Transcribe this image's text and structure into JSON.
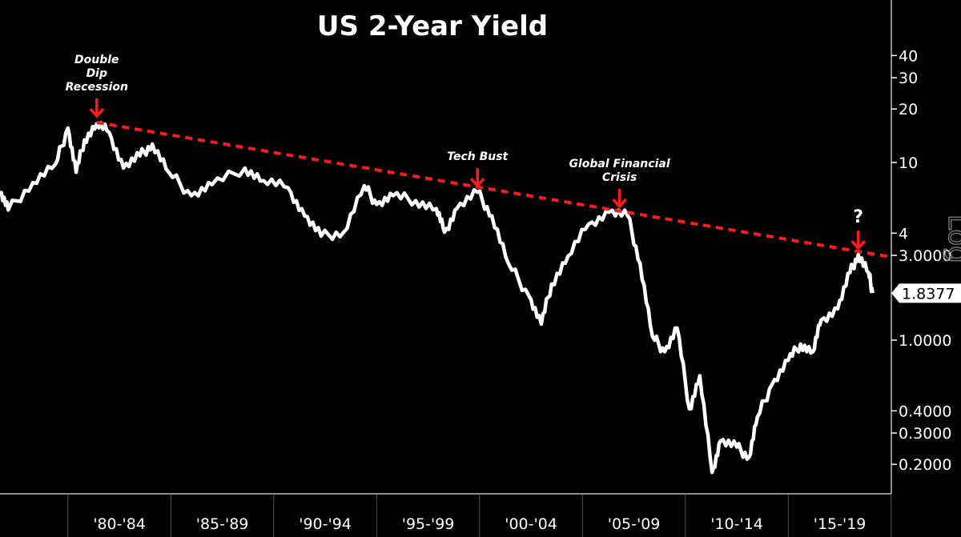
{
  "chart_data": {
    "type": "line",
    "title": "US 2-Year Yield",
    "xlabel": "",
    "ylabel": "",
    "y_scale": "log",
    "y_scale_label": "Log",
    "ylim": [
      0.15,
      55
    ],
    "xlim": [
      1976.7,
      2019.9
    ],
    "y_ticks": [
      {
        "value": 40,
        "label": "40"
      },
      {
        "value": 30,
        "label": "30"
      },
      {
        "value": 20,
        "label": "20"
      },
      {
        "value": 10,
        "label": "10"
      },
      {
        "value": 4,
        "label": "4"
      },
      {
        "value": 3,
        "label": "3.0000"
      },
      {
        "value": 1,
        "label": "1.0000"
      },
      {
        "value": 0.4,
        "label": "0.4000"
      },
      {
        "value": 0.3,
        "label": "0.3000"
      },
      {
        "value": 0.2,
        "label": "0.2000"
      }
    ],
    "x_periods": [
      {
        "start": 1980,
        "end": 1985,
        "label": "'80-'84"
      },
      {
        "start": 1985,
        "end": 1990,
        "label": "'85-'89"
      },
      {
        "start": 1990,
        "end": 1995,
        "label": "'90-'94"
      },
      {
        "start": 1995,
        "end": 2000,
        "label": "'95-'99"
      },
      {
        "start": 2000,
        "end": 2005,
        "label": "'00-'04"
      },
      {
        "start": 2005,
        "end": 2010,
        "label": "'05-'09"
      },
      {
        "start": 2010,
        "end": 2015,
        "label": "'10-'14"
      },
      {
        "start": 2015,
        "end": 2020,
        "label": "'15-'19"
      }
    ],
    "series": [
      {
        "name": "US 2-Year Yield",
        "color": "#ffffff",
        "x": [
          1976.7,
          1977.1,
          1978.3,
          1979.4,
          1980.0,
          1980.4,
          1980.8,
          1981.4,
          1982.0,
          1982.7,
          1983.5,
          1984.1,
          1984.9,
          1986.0,
          1987.0,
          1988.6,
          1989.5,
          1990.7,
          1991.5,
          1992.3,
          1993.4,
          1994.4,
          1995.0,
          1995.8,
          1996.9,
          1997.9,
          1998.3,
          1998.9,
          1999.9,
          2000.6,
          2001.4,
          2002.4,
          2003.0,
          2003.5,
          2004.3,
          2005.3,
          2006.3,
          2007.2,
          2007.8,
          2008.4,
          2009.0,
          2009.6,
          2010.2,
          2010.7,
          2011.3,
          2011.7,
          2012.5,
          2013.1,
          2013.5,
          2014.2,
          2015.0,
          2015.6,
          2016.2,
          2016.6,
          2017.4,
          2018.0,
          2018.4,
          2018.9,
          2019.1
        ],
        "y": [
          6.8,
          5.4,
          7.7,
          9.8,
          15.6,
          8.8,
          13.4,
          16.5,
          14.8,
          9.3,
          10.9,
          12.7,
          8.8,
          6.5,
          7.5,
          9.3,
          7.9,
          7.2,
          5.0,
          3.85,
          4.05,
          7.4,
          5.8,
          6.5,
          6.1,
          5.5,
          4.05,
          5.5,
          6.8,
          5.0,
          2.7,
          1.77,
          1.23,
          2.07,
          2.97,
          4.5,
          5.25,
          5.0,
          2.7,
          1.05,
          0.86,
          1.17,
          0.41,
          0.63,
          0.18,
          0.27,
          0.25,
          0.22,
          0.37,
          0.56,
          0.77,
          0.95,
          0.86,
          1.3,
          1.5,
          2.4,
          3.03,
          2.4,
          1.84
        ]
      }
    ],
    "last_value": "1.8377",
    "trendline": {
      "color": "#ff1a1a",
      "style": "dashed",
      "x": [
        1981.4,
        2019.9
      ],
      "y": [
        16.8,
        2.95
      ]
    },
    "annotations": [
      {
        "lines": [
          "Double",
          "Dip",
          "Recession"
        ],
        "x": 1981.4,
        "y": 16.8
      },
      {
        "lines": [
          "Tech Bust"
        ],
        "x": 1999.9,
        "y": 6.8
      },
      {
        "lines": [
          "Global Financial",
          "Crisis"
        ],
        "x": 2006.8,
        "y": 5.2
      },
      {
        "lines": [
          "?"
        ],
        "x": 2018.4,
        "y": 3.03
      }
    ],
    "legend": "none",
    "grid": false
  }
}
